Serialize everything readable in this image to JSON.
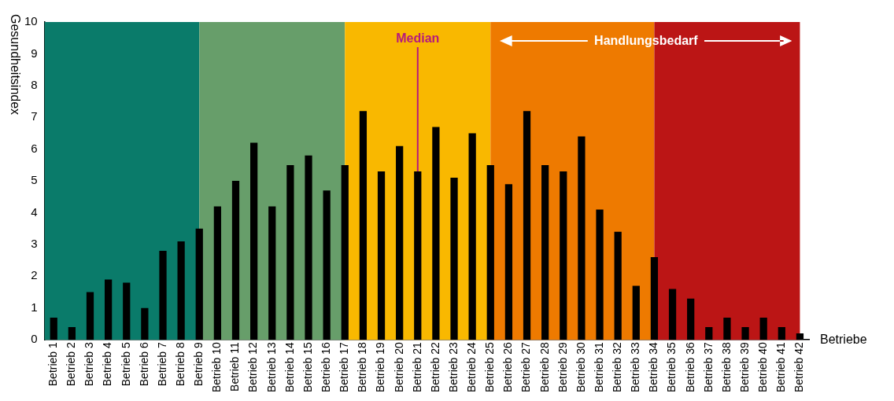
{
  "chart_data": {
    "type": "bar",
    "xlabel": "Betriebe",
    "ylabel": "Gesundheitsindex",
    "categories": [
      "Betrieb 1",
      "Betrieb 2",
      "Betrieb 3",
      "Betrieb 4",
      "Betrieb 5",
      "Betrieb 6",
      "Betrieb 7",
      "Betrieb 8",
      "Betrieb 9",
      "Betrieb 10",
      "Betrieb 11",
      "Betrieb 12",
      "Betrieb 13",
      "Betrieb 14",
      "Betrieb 15",
      "Betrieb 16",
      "Betrieb 17",
      "Betrieb 18",
      "Betrieb 19",
      "Betrieb 20",
      "Betrieb 21",
      "Betrieb 22",
      "Betrieb 23",
      "Betrieb 24",
      "Betrieb 25",
      "Betrieb 26",
      "Betrieb 27",
      "Betrieb 28",
      "Betrieb 29",
      "Betrieb 30",
      "Betrieb 31",
      "Betrieb 32",
      "Betrieb 33",
      "Betrieb 34",
      "Betrieb 35",
      "Betrieb 36",
      "Betrieb 37",
      "Betrieb 38",
      "Betrieb 39",
      "Betrieb 40",
      "Betrieb 41",
      "Betrieb 42"
    ],
    "values": [
      0.7,
      0.4,
      1.5,
      1.9,
      1.8,
      1.0,
      2.8,
      3.1,
      3.5,
      4.2,
      5.0,
      6.2,
      4.2,
      5.5,
      5.8,
      4.7,
      5.5,
      7.2,
      5.3,
      6.1,
      5.3,
      6.7,
      5.1,
      6.5,
      5.5,
      4.9,
      7.2,
      5.5,
      5.3,
      6.4,
      4.1,
      3.4,
      1.7,
      2.6,
      1.6,
      1.3,
      0.4,
      0.7,
      0.4,
      0.7,
      0.4,
      0.2
    ],
    "color": "#000000",
    "ylim": [
      0,
      10
    ],
    "yticks": [
      0,
      1,
      2,
      3,
      4,
      5,
      6,
      7,
      8,
      9,
      10
    ],
    "grid": false,
    "legend": false,
    "bands": [
      {
        "axis": "x",
        "from": "Betrieb 1",
        "to": "Betrieb 9",
        "color": "#0a7b6a"
      },
      {
        "axis": "x",
        "from": "Betrieb 9",
        "to": "Betrieb 17",
        "color": "#679e6a"
      },
      {
        "axis": "x",
        "from": "Betrieb 17",
        "to": "Betrieb 25",
        "color": "#f9b800"
      },
      {
        "axis": "x",
        "from": "Betrieb 25",
        "to": "Betrieb 34",
        "color": "#ee7a00"
      },
      {
        "axis": "x",
        "from": "Betrieb 34",
        "to": "Betrieb 42",
        "color": "#bb1515"
      }
    ],
    "ref_lines": [
      {
        "axis": "x",
        "value": "Betrieb 21",
        "label": "Median",
        "color": "#b5197e"
      }
    ],
    "annotations": [
      "Handlungsbedarf"
    ]
  }
}
